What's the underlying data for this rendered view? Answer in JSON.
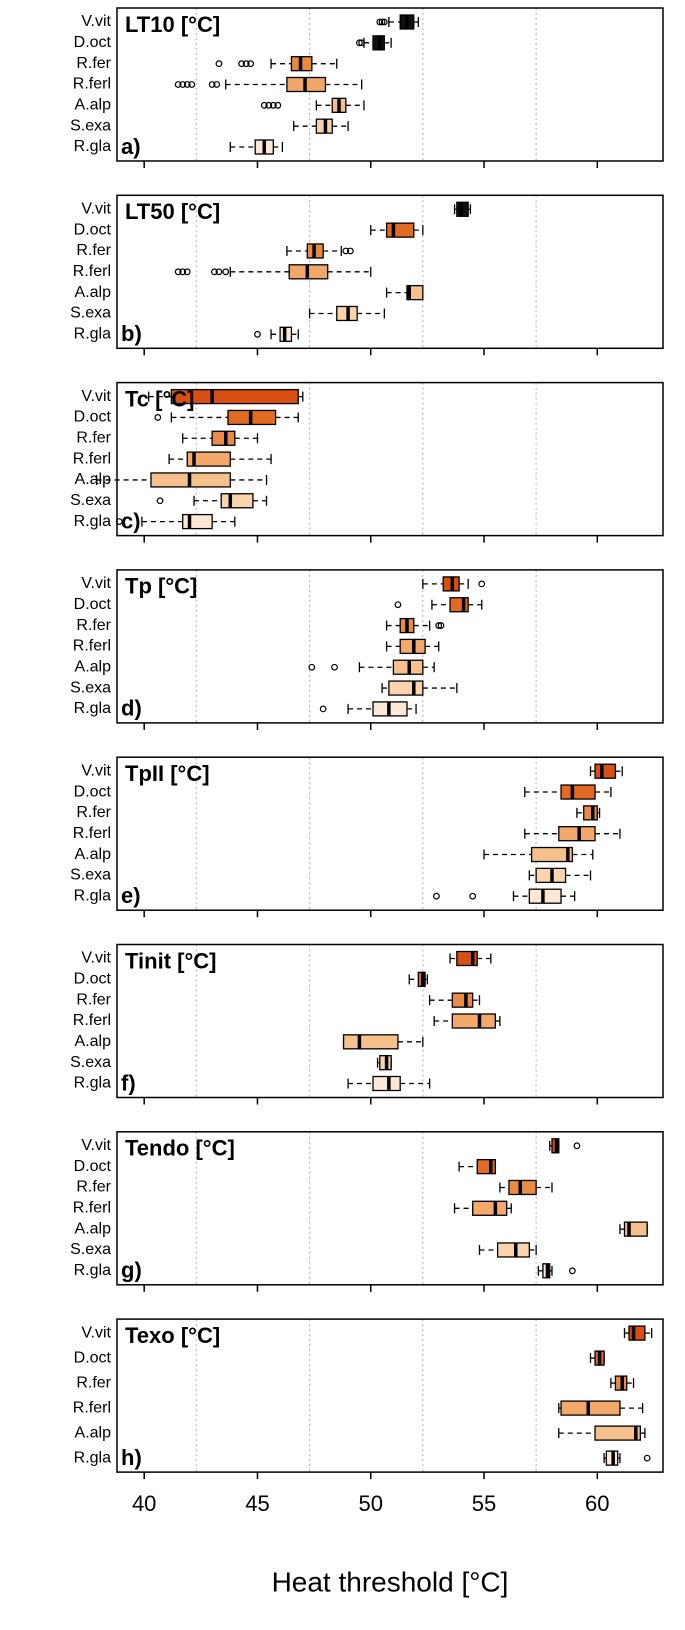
{
  "chart_data": [
    {
      "type": "boxplot",
      "title": "LT10 [°C]",
      "panel": "a)",
      "categories": [
        "V.vit",
        "D.oct",
        "R.fer",
        "R.ferl",
        "A.alp",
        "S.exa",
        "R.gla"
      ],
      "colors": [
        "#111111",
        "#111111",
        "#e98a3c",
        "#f2a76a",
        "#f6c08e",
        "#f9d3ad",
        "#fde7d5"
      ],
      "whisker_low": [
        50.8,
        49.7,
        45.6,
        43.6,
        47.6,
        46.6,
        43.8
      ],
      "q1": [
        51.3,
        50.1,
        46.5,
        46.3,
        48.3,
        47.6,
        44.9
      ],
      "median": [
        51.6,
        50.4,
        46.9,
        47.1,
        48.6,
        48.0,
        45.3
      ],
      "q3": [
        51.9,
        50.6,
        47.4,
        48.0,
        48.9,
        48.3,
        45.7
      ],
      "whisker_high": [
        52.1,
        50.9,
        48.5,
        49.6,
        49.7,
        49.0,
        46.1
      ],
      "outliers": [
        [
          50.4,
          50.5,
          50.6
        ],
        [
          49.5,
          49.6
        ],
        [
          43.3,
          44.3,
          44.5,
          44.7
        ],
        [
          41.5,
          41.7,
          41.9,
          42.1,
          43.0,
          43.2
        ],
        [
          45.3,
          45.5,
          45.7,
          45.9
        ],
        [],
        []
      ],
      "xlim": [
        38.8,
        62.9
      ],
      "xticks": [
        40,
        45,
        50,
        55,
        60
      ],
      "gridlines": [
        42.3,
        47.3,
        52.3,
        57.3
      ]
    },
    {
      "type": "boxplot",
      "title": "LT50 [°C]",
      "panel": "b)",
      "categories": [
        "V.vit",
        "D.oct",
        "R.fer",
        "R.ferl",
        "A.alp",
        "S.exa",
        "R.gla"
      ],
      "colors": [
        "#111111",
        "#e26a22",
        "#e98a3c",
        "#f2a76a",
        "#f6c08e",
        "#f9d3ad",
        "#fde7d5"
      ],
      "whisker_low": [
        53.7,
        50.0,
        46.3,
        43.8,
        50.7,
        47.3,
        45.6
      ],
      "q1": [
        53.8,
        50.7,
        47.2,
        46.4,
        51.6,
        48.5,
        46.0
      ],
      "median": [
        54.0,
        51.0,
        47.5,
        47.2,
        51.7,
        49.0,
        46.2
      ],
      "q3": [
        54.3,
        51.9,
        47.9,
        48.1,
        52.3,
        49.4,
        46.5
      ],
      "whisker_high": [
        54.4,
        52.3,
        48.7,
        50.0,
        52.3,
        50.6,
        46.8
      ],
      "outliers": [
        [],
        [],
        [
          48.9,
          49.1
        ],
        [
          41.5,
          41.7,
          41.9,
          43.1,
          43.3,
          43.6
        ],
        [],
        [],
        [
          45.0
        ]
      ],
      "xlim": [
        38.8,
        62.9
      ],
      "xticks": [
        40,
        45,
        50,
        55,
        60
      ],
      "gridlines": [
        42.3,
        47.3,
        52.3,
        57.3
      ]
    },
    {
      "type": "boxplot",
      "title": "Tc [°C]",
      "panel": "c)",
      "categories": [
        "V.vit",
        "D.oct",
        "R.fer",
        "R.ferl",
        "A.alp",
        "S.exa",
        "R.gla"
      ],
      "colors": [
        "#d94e12",
        "#e26a22",
        "#ea8a45",
        "#f2a96b",
        "#f5c08c",
        "#f9d4ae",
        "#fde7d5"
      ],
      "whisker_low": [
        40.2,
        41.2,
        41.7,
        41.1,
        37.9,
        42.2,
        39.9
      ],
      "q1": [
        41.2,
        43.7,
        43.0,
        41.9,
        40.3,
        43.4,
        41.7
      ],
      "median": [
        43.0,
        44.7,
        43.6,
        42.2,
        42.0,
        43.8,
        42.0
      ],
      "q3": [
        46.8,
        45.8,
        44.0,
        43.8,
        43.8,
        44.8,
        43.0
      ],
      "whisker_high": [
        47.0,
        46.8,
        45.0,
        45.6,
        45.4,
        45.4,
        44.0
      ],
      "outliers": [
        [],
        [
          40.6
        ],
        [],
        [],
        [],
        [
          40.7
        ],
        [
          38.9
        ]
      ],
      "xlim": [
        38.8,
        62.9
      ],
      "xticks": [
        40,
        45,
        50,
        55,
        60
      ],
      "gridlines": [
        42.3,
        47.3,
        52.3,
        57.3
      ]
    },
    {
      "type": "boxplot",
      "title": "Tp [°C]",
      "panel": "d)",
      "categories": [
        "V.vit",
        "D.oct",
        "R.fer",
        "R.ferl",
        "A.alp",
        "S.exa",
        "R.gla"
      ],
      "colors": [
        "#d94e12",
        "#e26a22",
        "#ea8a45",
        "#f2a96b",
        "#f5c08c",
        "#f9d4ae",
        "#fde7d5"
      ],
      "whisker_low": [
        52.3,
        52.7,
        50.7,
        50.7,
        49.5,
        50.5,
        49.0
      ],
      "q1": [
        53.2,
        53.5,
        51.3,
        51.3,
        51.0,
        50.8,
        50.1
      ],
      "median": [
        53.6,
        54.1,
        51.6,
        51.9,
        51.7,
        51.9,
        50.8
      ],
      "q3": [
        53.9,
        54.3,
        51.9,
        52.4,
        52.3,
        52.3,
        51.6
      ],
      "whisker_high": [
        54.3,
        54.9,
        52.6,
        53.0,
        52.8,
        53.8,
        52.0
      ],
      "outliers": [
        [
          54.9
        ],
        [
          51.2
        ],
        [
          53.0,
          53.1
        ],
        [],
        [
          47.4,
          48.4
        ],
        [],
        [
          47.9
        ]
      ],
      "xlim": [
        38.8,
        62.9
      ],
      "xticks": [
        40,
        45,
        50,
        55,
        60
      ],
      "gridlines": [
        42.3,
        47.3,
        52.3,
        57.3
      ]
    },
    {
      "type": "boxplot",
      "title": "TpII [°C]",
      "panel": "e)",
      "categories": [
        "V.vit",
        "D.oct",
        "R.fer",
        "R.ferl",
        "A.alp",
        "S.exa",
        "R.gla"
      ],
      "colors": [
        "#d94e12",
        "#e26a22",
        "#ea8a45",
        "#f2a96b",
        "#f5c08c",
        "#f9d4ae",
        "#fde7d5"
      ],
      "whisker_low": [
        59.7,
        56.8,
        59.1,
        56.8,
        55.0,
        57.0,
        56.3
      ],
      "q1": [
        59.9,
        58.4,
        59.4,
        58.3,
        57.1,
        57.3,
        57.0
      ],
      "median": [
        60.2,
        58.9,
        59.8,
        59.2,
        58.7,
        58.0,
        57.6
      ],
      "q3": [
        60.8,
        59.9,
        60.0,
        59.9,
        58.9,
        58.6,
        58.4
      ],
      "whisker_high": [
        61.1,
        60.6,
        60.1,
        61.0,
        59.8,
        59.7,
        59.0
      ],
      "outliers": [
        [],
        [],
        [],
        [],
        [],
        [],
        [
          52.9,
          54.5
        ]
      ],
      "xlim": [
        38.8,
        62.9
      ],
      "xticks": [
        40,
        45,
        50,
        55,
        60
      ],
      "gridlines": [
        42.3,
        47.3,
        52.3,
        57.3
      ]
    },
    {
      "type": "boxplot",
      "title": "Tinit [°C]",
      "panel": "f)",
      "categories": [
        "V.vit",
        "D.oct",
        "R.fer",
        "R.ferl",
        "A.alp",
        "S.exa",
        "R.gla"
      ],
      "colors": [
        "#d94e12",
        "#e26a22",
        "#ea8a45",
        "#f2a96b",
        "#f5c08c",
        "#f9d4ae",
        "#fde7d5"
      ],
      "whisker_low": [
        53.5,
        51.7,
        52.6,
        52.8,
        48.8,
        50.3,
        49.0
      ],
      "q1": [
        53.8,
        52.1,
        53.6,
        53.6,
        48.8,
        50.4,
        50.1
      ],
      "median": [
        54.5,
        52.3,
        54.2,
        54.8,
        49.5,
        50.7,
        50.8
      ],
      "q3": [
        54.7,
        52.4,
        54.5,
        55.5,
        51.2,
        50.9,
        51.3
      ],
      "whisker_high": [
        55.3,
        52.5,
        54.8,
        55.7,
        52.3,
        50.9,
        52.6
      ],
      "outliers": [
        [],
        [],
        [],
        [],
        [],
        [],
        []
      ],
      "xlim": [
        38.8,
        62.9
      ],
      "xticks": [
        40,
        45,
        50,
        55,
        60
      ],
      "gridlines": [
        42.3,
        47.3,
        52.3,
        57.3
      ]
    },
    {
      "type": "boxplot",
      "title": "Tendo [°C]",
      "panel": "g)",
      "categories": [
        "V.vit",
        "D.oct",
        "R.fer",
        "R.ferl",
        "A.alp",
        "S.exa",
        "R.gla"
      ],
      "colors": [
        "#d94e12",
        "#e26a22",
        "#ea8a45",
        "#f2a96b",
        "#f5c08c",
        "#f9d4ae",
        "#fde7d5"
      ],
      "whisker_low": [
        57.9,
        53.9,
        55.7,
        53.7,
        61.0,
        54.8,
        57.4
      ],
      "q1": [
        58.0,
        54.7,
        56.1,
        54.5,
        61.2,
        55.6,
        57.6
      ],
      "median": [
        58.2,
        55.3,
        56.6,
        55.5,
        61.4,
        56.4,
        57.8
      ],
      "q3": [
        58.3,
        55.5,
        57.3,
        56.0,
        62.2,
        57.0,
        57.9
      ],
      "whisker_high": [
        58.3,
        55.5,
        58.0,
        56.2,
        62.2,
        57.3,
        58.0
      ],
      "outliers": [
        [
          59.1
        ],
        [],
        [],
        [],
        [],
        [],
        [
          58.9
        ]
      ],
      "xlim": [
        38.8,
        62.9
      ],
      "xticks": [
        40,
        45,
        50,
        55,
        60
      ],
      "gridlines": [
        42.3,
        47.3,
        52.3,
        57.3
      ]
    },
    {
      "type": "boxplot",
      "title": "Texo [°C]",
      "panel": "h)",
      "categories": [
        "V.vit",
        "D.oct",
        "R.fer",
        "R.ferl",
        "A.alp",
        "R.gla"
      ],
      "colors": [
        "#d94e12",
        "#e26a22",
        "#ea8a45",
        "#f2a96b",
        "#f5c08c",
        "#fde7d5"
      ],
      "whisker_low": [
        61.2,
        59.7,
        60.6,
        58.3,
        58.3,
        60.3
      ],
      "q1": [
        61.4,
        59.9,
        60.8,
        58.4,
        59.9,
        60.4
      ],
      "median": [
        61.6,
        60.1,
        61.1,
        59.6,
        61.7,
        60.7
      ],
      "q3": [
        62.1,
        60.3,
        61.3,
        61.0,
        61.9,
        60.9
      ],
      "whisker_high": [
        62.4,
        60.3,
        61.6,
        62.0,
        62.1,
        61.0
      ],
      "outliers": [
        [],
        [],
        [],
        [],
        [],
        [
          62.2
        ]
      ],
      "xlim": [
        38.8,
        62.9
      ],
      "xticks": [
        40,
        45,
        50,
        55,
        60
      ],
      "gridlines": [
        42.3,
        47.3,
        52.3,
        57.3
      ],
      "xlabel": "Heat threshold [°C]"
    }
  ]
}
